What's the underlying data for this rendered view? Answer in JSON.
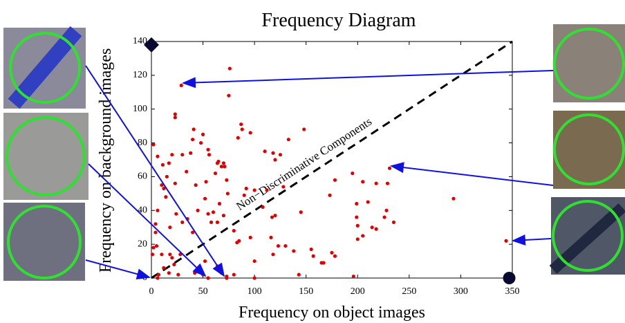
{
  "chart_data": {
    "type": "scatter",
    "title": "Frequency Diagram",
    "xlabel": "Frequency on object images",
    "ylabel": "Frequency on background images",
    "annotation": "Non−Discriminative Components",
    "xlim": [
      0,
      350
    ],
    "ylim": [
      0,
      140
    ],
    "xticks": [
      0,
      50,
      100,
      150,
      200,
      250,
      300,
      350
    ],
    "yticks": [
      0,
      20,
      40,
      60,
      80,
      100,
      120,
      140
    ],
    "diagonal": {
      "x": [
        0,
        350
      ],
      "y": [
        0,
        140
      ]
    },
    "series": [
      {
        "color": "#e00000",
        "marker": "dot",
        "x": [
          76,
          75,
          29,
          23,
          23,
          41,
          87,
          88,
          96,
          84,
          148,
          50,
          40,
          133,
          48,
          110,
          125,
          118,
          120,
          2,
          38,
          55,
          56,
          70,
          68,
          71,
          64,
          65,
          30,
          20,
          17,
          11,
          6,
          15,
          34,
          53,
          62,
          23,
          43,
          10,
          12,
          14,
          73,
          74,
          92,
          90,
          100,
          112,
          108,
          128,
          178,
          195,
          218,
          231,
          229,
          205,
          210,
          199,
          199,
          173,
          293,
          120,
          117,
          145,
          228,
          226,
          235,
          214,
          200,
          205,
          200,
          218,
          52,
          66,
          60,
          55,
          45,
          35,
          30,
          6,
          4,
          4,
          18,
          24,
          40,
          58,
          64,
          70,
          80,
          83,
          85,
          96,
          116,
          118,
          123,
          130,
          138,
          100,
          155,
          157,
          175,
          178,
          167,
          165,
          2,
          5,
          1,
          10,
          18,
          20,
          28,
          22,
          12,
          17,
          26,
          42,
          50,
          55,
          68,
          73,
          73,
          80,
          64,
          52,
          100,
          143,
          196,
          344,
          7,
          6
        ],
        "y": [
          124,
          108,
          114,
          97,
          95,
          88,
          91,
          88,
          86,
          83,
          88,
          85,
          82,
          82,
          80,
          75,
          73,
          74,
          70,
          79,
          74,
          76,
          73,
          68,
          66,
          66,
          68,
          69,
          73,
          73,
          68,
          67,
          72,
          60,
          63,
          57,
          62,
          56,
          55,
          55,
          53,
          48,
          58,
          50,
          53,
          49,
          52,
          52,
          42,
          54,
          58,
          62,
          56,
          65,
          56,
          57,
          45,
          44,
          36,
          49,
          47,
          37,
          36,
          39,
          40,
          36,
          33,
          30,
          31,
          25,
          23,
          29,
          47,
          44,
          39,
          38,
          40,
          35,
          33,
          40,
          32,
          27,
          30,
          38,
          27,
          33,
          33,
          37,
          28,
          21,
          22,
          24,
          24,
          14,
          19,
          19,
          16,
          10,
          17,
          13,
          15,
          13,
          9,
          9,
          18,
          19,
          14,
          14,
          14,
          12,
          14,
          8,
          6,
          3,
          2,
          3,
          2,
          0,
          3,
          1,
          0,
          2,
          7,
          10,
          0,
          2,
          1,
          22,
          2,
          0
        ]
      },
      {
        "color": "#0a0a30",
        "marker": "diamond",
        "x": [
          0
        ],
        "y": [
          138
        ]
      },
      {
        "color": "#0a0a30",
        "marker": "circle",
        "x": [
          347
        ],
        "y": [
          0
        ]
      }
    ]
  }
}
